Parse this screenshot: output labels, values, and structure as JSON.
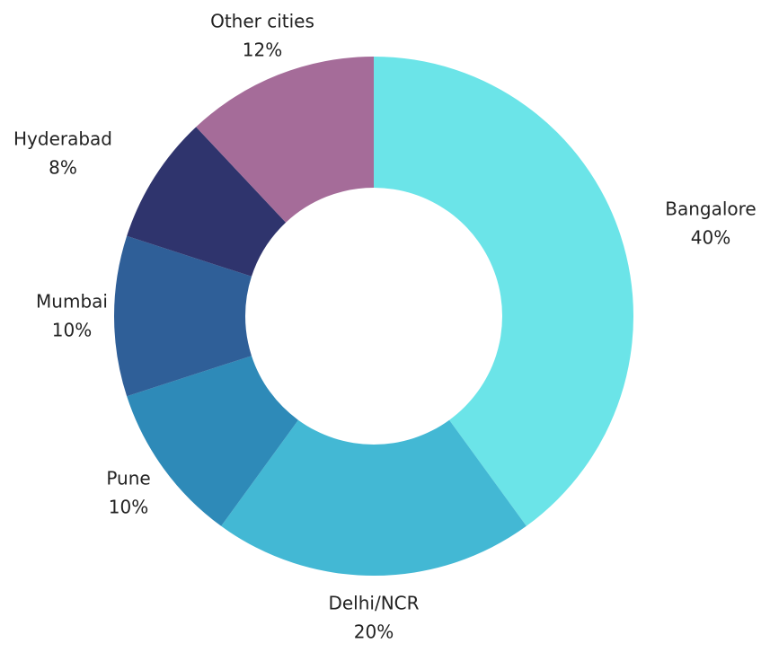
{
  "chart_data": {
    "type": "donut",
    "categories": [
      "Bangalore",
      "Delhi/NCR",
      "Pune",
      "Mumbai",
      "Hyderabad",
      "Other cities"
    ],
    "values": [
      40,
      20,
      10,
      10,
      8,
      12
    ],
    "value_labels": [
      "40%",
      "20%",
      "10%",
      "10%",
      "8%",
      "12%"
    ],
    "colors": [
      "#6be4e8",
      "#43b8d4",
      "#2e8ab8",
      "#2f5f98",
      "#2f346d",
      "#a56c99"
    ]
  }
}
